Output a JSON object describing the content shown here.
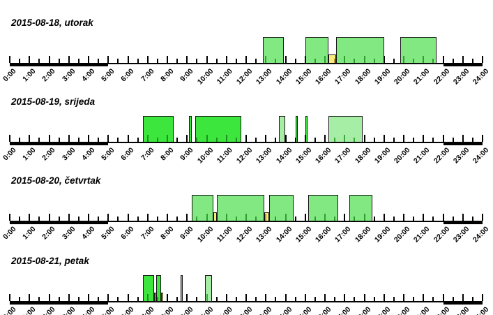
{
  "chart_data": {
    "type": "bar",
    "subtype": "daily-activity-interval-timeline",
    "x_axis": {
      "min_hour": 0,
      "max_hour": 24,
      "major_tick_every_hours": 1,
      "minor_tick_every_hours": 0.5,
      "label_format": "H:00",
      "labels": [
        "0:00",
        "1:00",
        "2:00",
        "3:00",
        "4:00",
        "5:00",
        "6:00",
        "7:00",
        "8:00",
        "9:00",
        "10:00",
        "11:00",
        "12:00",
        "13:00",
        "14:00",
        "15:00",
        "16:00",
        "17:00",
        "18:00",
        "19:00",
        "20:00",
        "21:00",
        "22:00",
        "23:00",
        "24:00"
      ],
      "bold_axis_segments_hours": [
        [
          0,
          5
        ],
        [
          22,
          24
        ]
      ]
    },
    "styles": {
      "green_bright": {
        "fill": "#3ce63c",
        "tick": "#1f8f1f"
      },
      "green_medium": {
        "fill": "#82e882",
        "tick": "#2f9e2f"
      },
      "green_light": {
        "fill": "#a6eda6",
        "tick": "#3aa83a"
      },
      "yellow": {
        "fill": "#fae97d",
        "tick": "#b09a30"
      }
    },
    "axis_color": "#000000",
    "border_color": "#151515",
    "background_color": "#ffffff",
    "days": [
      {
        "title": "2015-08-18, utorak",
        "intervals": [
          {
            "start": "12:50",
            "end": "13:55",
            "style": "green_medium"
          },
          {
            "start": "15:00",
            "end": "16:10",
            "style": "green_medium"
          },
          {
            "start": "16:10",
            "end": "16:35",
            "style": "yellow"
          },
          {
            "start": "16:35",
            "end": "19:00",
            "style": "green_medium"
          },
          {
            "start": "19:50",
            "end": "21:40",
            "style": "green_medium"
          }
        ]
      },
      {
        "title": "2015-08-19, srijeda",
        "intervals": [
          {
            "start": "6:45",
            "end": "8:20",
            "style": "green_bright"
          },
          {
            "start": "9:05",
            "end": "9:15",
            "style": "green_bright"
          },
          {
            "start": "9:25",
            "end": "11:45",
            "style": "green_bright"
          },
          {
            "start": "13:40",
            "end": "14:00",
            "style": "green_light"
          },
          {
            "start": "14:30",
            "end": "14:35",
            "style": "green_bright"
          },
          {
            "start": "15:00",
            "end": "15:05",
            "style": "green_bright"
          },
          {
            "start": "16:10",
            "end": "17:55",
            "style": "green_light"
          }
        ]
      },
      {
        "title": "2015-08-20, četvrtak",
        "intervals": [
          {
            "start": "9:15",
            "end": "10:20",
            "style": "green_medium"
          },
          {
            "start": "10:20",
            "end": "10:30",
            "style": "yellow"
          },
          {
            "start": "10:30",
            "end": "12:55",
            "style": "green_medium"
          },
          {
            "start": "12:55",
            "end": "13:10",
            "style": "yellow"
          },
          {
            "start": "13:10",
            "end": "14:25",
            "style": "green_medium"
          },
          {
            "start": "15:10",
            "end": "16:40",
            "style": "green_medium"
          },
          {
            "start": "17:15",
            "end": "18:25",
            "style": "green_medium"
          }
        ]
      },
      {
        "title": "2015-08-21, petak",
        "intervals": [
          {
            "start": "6:45",
            "end": "7:20",
            "style": "green_bright"
          },
          {
            "start": "7:20",
            "end": "7:25",
            "style": "yellow"
          },
          {
            "start": "7:25",
            "end": "7:40",
            "style": "green_bright"
          },
          {
            "start": "7:40",
            "end": "7:45",
            "style": "yellow"
          },
          {
            "start": "8:40",
            "end": "8:45",
            "style": "green_bright"
          },
          {
            "start": "9:55",
            "end": "10:15",
            "style": "green_light"
          }
        ]
      }
    ]
  }
}
